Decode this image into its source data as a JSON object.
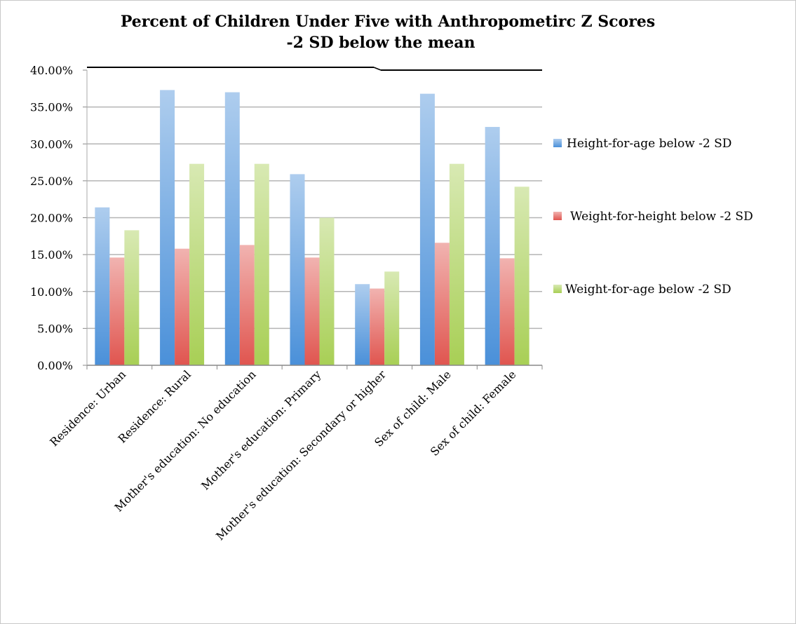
{
  "chart_data": {
    "type": "bar",
    "title_lines": [
      "Percent of Children Under Five with Anthropometirc Z Scores",
      "-2 SD below the mean"
    ],
    "xlabel": "",
    "ylabel": "",
    "categories": [
      "Residence: Urban",
      "Residence: Rural",
      "Mother's education: No education",
      "Mother's education: Primary",
      "Mother's education: Secondary or higher",
      "Sex of child: Male",
      "Sex of child: Female"
    ],
    "series": [
      {
        "name": "Height-for-age below -2 SD",
        "color": "#4a90d9",
        "values": [
          21.4,
          37.3,
          37.0,
          25.9,
          11.0,
          36.8,
          32.3
        ]
      },
      {
        "name": "Weight-for-height below -2 SD",
        "color": "#e0554f",
        "values": [
          14.6,
          15.8,
          16.3,
          14.6,
          10.4,
          16.6,
          14.5
        ]
      },
      {
        "name": "Weight-for-age below -2 SD",
        "color": "#a8cf55",
        "values": [
          18.3,
          27.3,
          27.3,
          20.0,
          12.7,
          27.3,
          24.2
        ]
      }
    ],
    "ylim": [
      0,
      40
    ],
    "yticks": [
      "0.00%",
      "5.00%",
      "10.00%",
      "15.00%",
      "20.00%",
      "25.00%",
      "30.00%",
      "35.00%",
      "40.00%"
    ],
    "grid": true,
    "legend_position": "right"
  }
}
